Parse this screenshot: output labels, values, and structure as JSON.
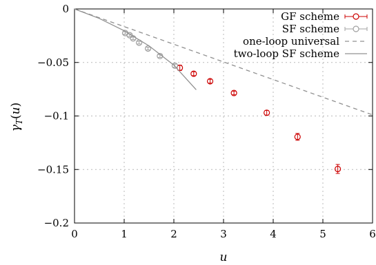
{
  "chart_data": {
    "type": "scatter",
    "xlabel": "u",
    "ylabel": "γT(u)",
    "xlim": [
      0,
      6
    ],
    "ylim": [
      -0.2,
      0
    ],
    "xticks": [
      0,
      1,
      2,
      3,
      4,
      5,
      6
    ],
    "yticks": [
      0,
      -0.05,
      -0.1,
      -0.15,
      -0.2
    ],
    "xtick_labels": [
      "0",
      "1",
      "2",
      "3",
      "4",
      "5",
      "6"
    ],
    "ytick_labels": [
      "0",
      "−0.05",
      "−0.1",
      "−0.15",
      "−0.2"
    ],
    "grid": true,
    "legend_position": "top-right",
    "series": [
      {
        "name": "GF scheme",
        "kind": "points-errorbars",
        "color": "#cc0000",
        "x": [
          2.12,
          2.4,
          2.73,
          3.21,
          3.87,
          4.49,
          5.3
        ],
        "y": [
          -0.055,
          -0.0605,
          -0.0675,
          -0.0785,
          -0.097,
          -0.1195,
          -0.1495
        ],
        "yerr": [
          0.0025,
          0.0018,
          0.0018,
          0.0017,
          0.0022,
          0.0032,
          0.0042
        ]
      },
      {
        "name": "SF scheme",
        "kind": "points-errorbars",
        "color": "#a0a0a0",
        "x": [
          1.02,
          1.11,
          1.18,
          1.3,
          1.48,
          1.72,
          2.02
        ],
        "y": [
          -0.0225,
          -0.0245,
          -0.0275,
          -0.0315,
          -0.037,
          -0.044,
          -0.053
        ],
        "yerr": [
          0.0012,
          0.0012,
          0.0012,
          0.0012,
          0.0013,
          0.0014,
          0.0015
        ]
      },
      {
        "name": "one-loop universal",
        "kind": "line-dashed",
        "color": "#909090",
        "x": [
          0,
          6
        ],
        "y": [
          0,
          -0.099
        ]
      },
      {
        "name": "two-loop SF scheme",
        "kind": "line",
        "color": "#909090",
        "x": [
          0,
          0.5,
          1.0,
          1.5,
          2.0,
          2.45
        ],
        "y": [
          0,
          -0.0089,
          -0.0204,
          -0.0345,
          -0.0525,
          -0.0755
        ]
      }
    ]
  }
}
